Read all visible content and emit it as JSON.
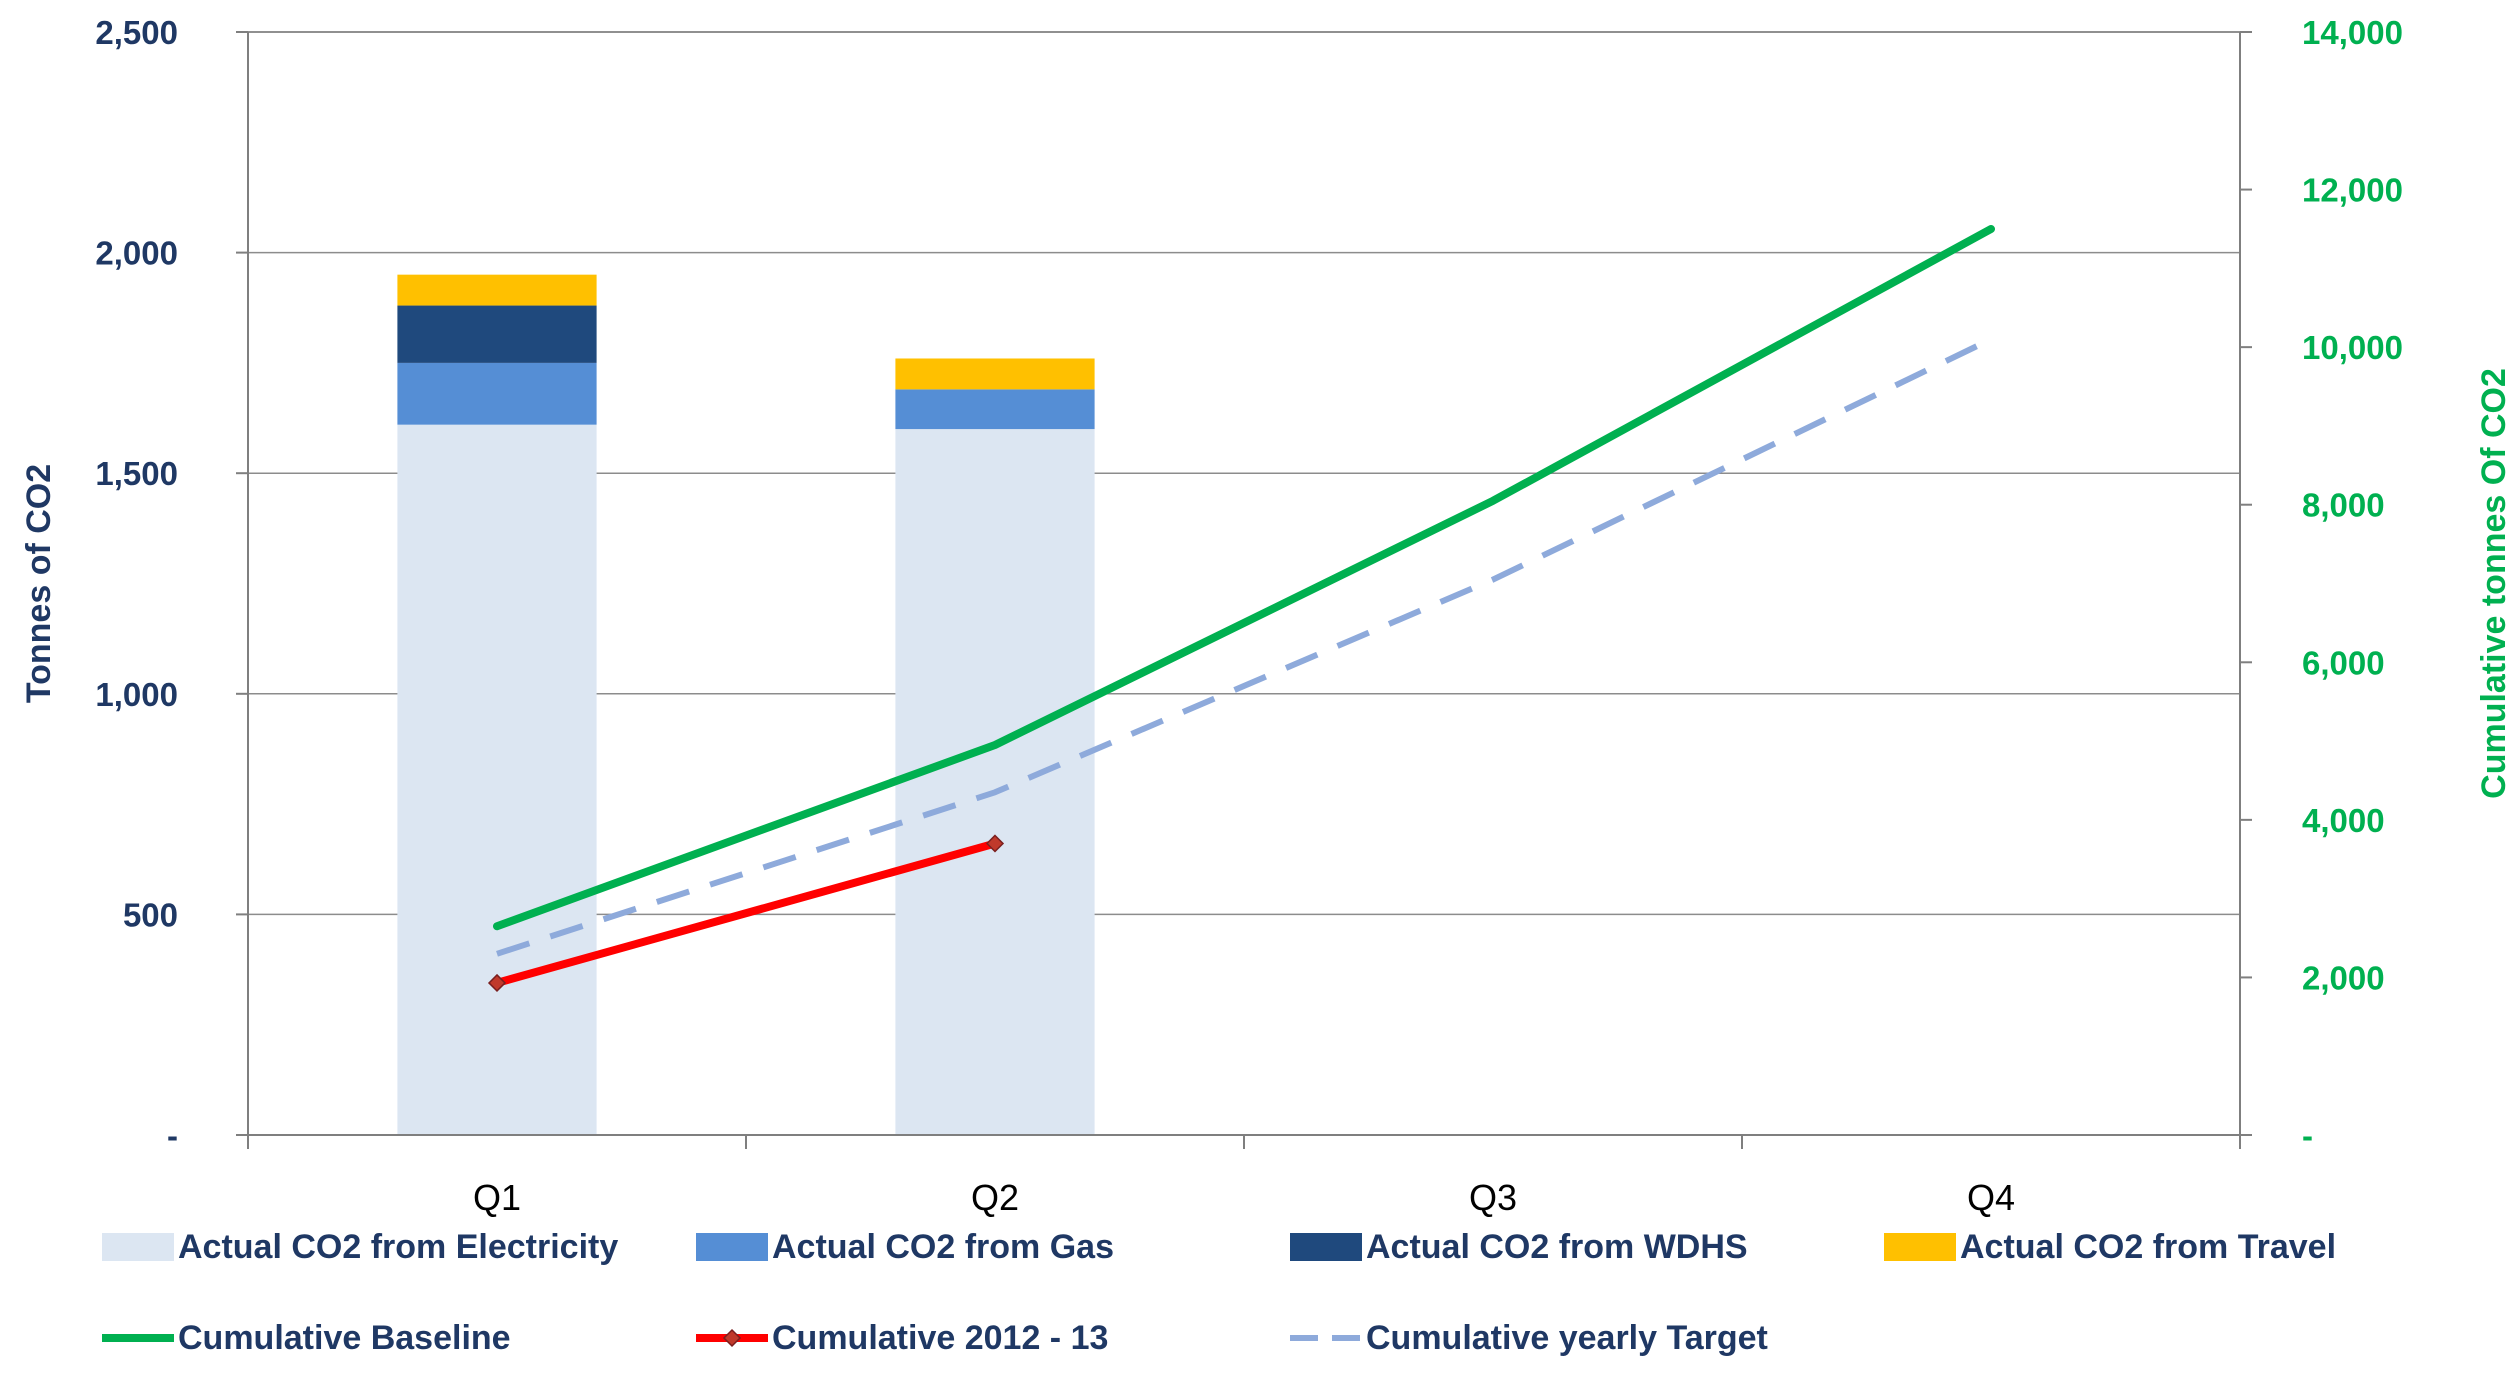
{
  "chart_data": {
    "type": "bar",
    "categories": [
      "Q1",
      "Q2",
      "Q3",
      "Q4"
    ],
    "y_left": {
      "label": "Tonnes of CO2",
      "range": [
        0,
        2500
      ],
      "ticks": [
        0,
        500,
        1000,
        1500,
        2000,
        2500
      ],
      "tick_labels": [
        "-",
        "500",
        "1,000",
        "1,500",
        "2,000",
        "2,500"
      ],
      "color": "#1f3864"
    },
    "y_right": {
      "label": "Cumulative tonnes Of CO2",
      "range": [
        0,
        14000
      ],
      "ticks": [
        0,
        2000,
        4000,
        6000,
        8000,
        10000,
        12000,
        14000
      ],
      "tick_labels": [
        "-",
        "2,000",
        "4,000",
        "6,000",
        "8,000",
        "10,000",
        "12,000",
        "14,000"
      ],
      "color": "#00b050"
    },
    "grid": true,
    "legend_position": "bottom",
    "bar_series": [
      {
        "name": "Actual CO2 from Electricity",
        "color": "#dce6f2",
        "values": [
          1610,
          1600,
          null,
          null
        ]
      },
      {
        "name": "Actual CO2 from Gas",
        "color": "#558ed5",
        "values": [
          140,
          90,
          null,
          null
        ]
      },
      {
        "name": "Actual CO2 from WDHS",
        "color": "#1f497d",
        "values": [
          130,
          0,
          null,
          null
        ]
      },
      {
        "name": "Actual CO2 from Travel",
        "color": "#ffc000",
        "values": [
          70,
          70,
          null,
          null
        ]
      }
    ],
    "line_series": [
      {
        "name": "Cumulative Baseline",
        "color": "#00b050",
        "style": "solid",
        "axis": "right",
        "values": [
          2650,
          4950,
          8050,
          11500
        ]
      },
      {
        "name": "Cumulative 2012 - 13",
        "color": "#ff0000",
        "style": "solid-marker",
        "axis": "right",
        "values": [
          1930,
          3700,
          null,
          null
        ]
      },
      {
        "name": "Cumulative yearly Target",
        "color": "#8eaadb",
        "style": "dashed",
        "axis": "right",
        "values": [
          2300,
          4350,
          7050,
          10100
        ]
      }
    ]
  }
}
